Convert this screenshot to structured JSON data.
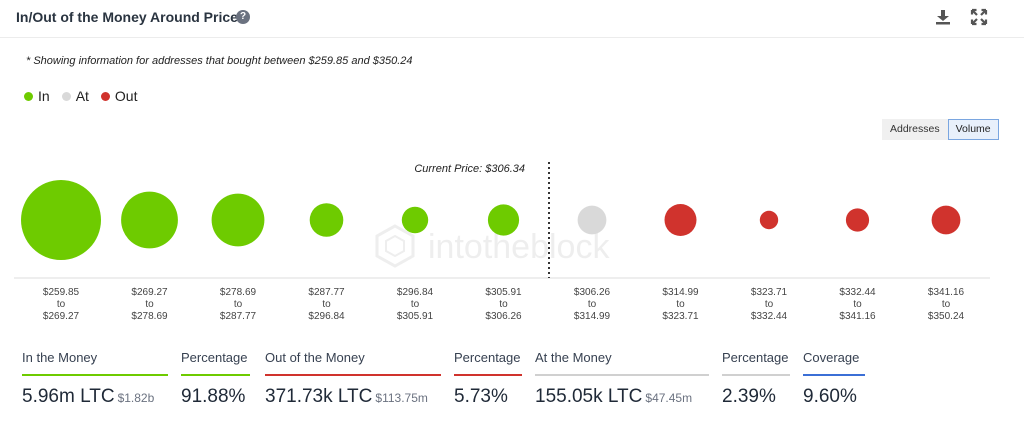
{
  "header": {
    "title": "In/Out of the Money Around Price",
    "help_glyph": "?",
    "icons": [
      "download-icon",
      "expand-icon"
    ]
  },
  "note": "* Showing information for addresses that bought between $259.85 and $350.24",
  "legend": [
    {
      "label": "In",
      "color": "#6ecb00"
    },
    {
      "label": "At",
      "color": "#d9d9d9"
    },
    {
      "label": "Out",
      "color": "#d0332d"
    }
  ],
  "toggle": {
    "addresses": "Addresses",
    "volume": "Volume",
    "selected": "Volume"
  },
  "chart_data": {
    "type": "scatter",
    "current_price_label": "Current Price: $306.34",
    "categories": [
      {
        "low": "$259.85",
        "high": "$269.27",
        "status": "in",
        "relative_size": 1.0
      },
      {
        "low": "$269.27",
        "high": "$278.69",
        "status": "in",
        "relative_size": 0.71
      },
      {
        "low": "$278.69",
        "high": "$287.77",
        "status": "in",
        "relative_size": 0.66
      },
      {
        "low": "$287.77",
        "high": "$296.84",
        "status": "in",
        "relative_size": 0.42
      },
      {
        "low": "$296.84",
        "high": "$305.91",
        "status": "in",
        "relative_size": 0.33
      },
      {
        "low": "$305.91",
        "high": "$306.26",
        "status": "in",
        "relative_size": 0.39
      },
      {
        "low": "$306.26",
        "high": "$314.99",
        "status": "at",
        "relative_size": 0.36
      },
      {
        "low": "$314.99",
        "high": "$323.71",
        "status": "out",
        "relative_size": 0.4
      },
      {
        "low": "$323.71",
        "high": "$332.44",
        "status": "out",
        "relative_size": 0.23
      },
      {
        "low": "$332.44",
        "high": "$341.16",
        "status": "out",
        "relative_size": 0.29
      },
      {
        "low": "$341.16",
        "high": "$350.24",
        "status": "out",
        "relative_size": 0.36
      }
    ],
    "range_word": "to",
    "colors": {
      "in": "#6ecb00",
      "at": "#d9d9d9",
      "out": "#d0332d"
    },
    "watermark": "intotheblock"
  },
  "stats": [
    {
      "label": "In the Money",
      "value": "5.96m LTC",
      "sub": "$1.82b",
      "bar_color": "#6ecb00"
    },
    {
      "label": "Percentage",
      "value": "91.88%",
      "sub": "",
      "bar_color": "#6ecb00"
    },
    {
      "label": "Out of the Money",
      "value": "371.73k LTC",
      "sub": "$113.75m",
      "bar_color": "#d0332d"
    },
    {
      "label": "Percentage",
      "value": "5.73%",
      "sub": "",
      "bar_color": "#d0332d"
    },
    {
      "label": "At the Money",
      "value": "155.05k LTC",
      "sub": "$47.45m",
      "bar_color": "#d0d0d0"
    },
    {
      "label": "Percentage",
      "value": "2.39%",
      "sub": "",
      "bar_color": "#d0d0d0"
    },
    {
      "label": "Coverage",
      "value": "9.60%",
      "sub": "",
      "bar_color": "#3b6fd6"
    }
  ]
}
